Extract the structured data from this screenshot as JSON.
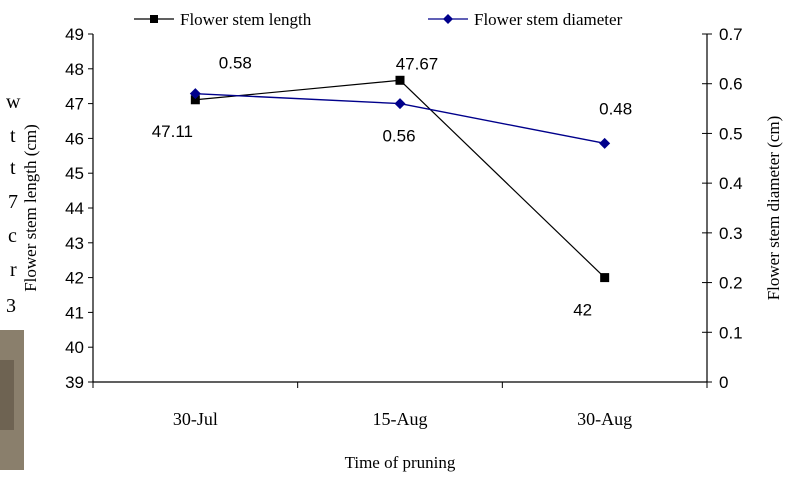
{
  "chart_data": {
    "type": "line",
    "categories": [
      "30-Jul",
      "15-Aug",
      "30-Aug"
    ],
    "xlabel": "Time of pruning",
    "series": [
      {
        "name": "Flower stem length",
        "axis": "left",
        "marker": "square",
        "color": "#000000",
        "values": [
          47.11,
          47.67,
          42
        ],
        "labels": [
          "47.11",
          "47.67",
          "42"
        ]
      },
      {
        "name": "Flower stem diameter",
        "axis": "right",
        "marker": "diamond",
        "color": "#00008b",
        "values": [
          0.58,
          0.56,
          0.48
        ],
        "labels": [
          "0.58",
          "0.56",
          "0.48"
        ]
      }
    ],
    "y_left": {
      "label": "Flower stem length (cm)",
      "range": [
        39,
        49
      ],
      "ticks": [
        "39",
        "40",
        "41",
        "42",
        "43",
        "44",
        "45",
        "46",
        "47",
        "48",
        "49"
      ]
    },
    "y_right": {
      "label": "Flower stem diameter (cm)",
      "range": [
        0,
        0.7
      ],
      "ticks": [
        "0",
        "0.1",
        "0.2",
        "0.3",
        "0.4",
        "0.5",
        "0.6",
        "0.7"
      ]
    },
    "grid": false,
    "legend_position": "top"
  },
  "background_text": [
    "w",
    "t",
    "t",
    "7",
    "c",
    "r",
    "3"
  ]
}
